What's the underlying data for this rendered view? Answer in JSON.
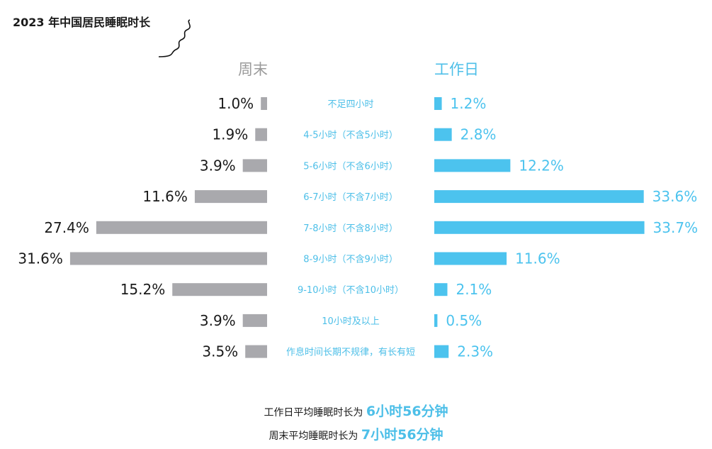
{
  "title": "2023 年中国居民睡眠时长",
  "headers": {
    "weekend": "周末",
    "workday": "工作日"
  },
  "colors": {
    "weekend": "#a9a9ad",
    "workday": "#4cc3ee",
    "label": "#4dbfe8",
    "text": "#1a1a1a"
  },
  "chart_data": {
    "type": "bar",
    "title": "2023 年中国居民睡眠时长",
    "categories": [
      "不足四小时",
      "4-5小时（不含5小时）",
      "5-6小时（不含6小时）",
      "6-7小时（不含7小时）",
      "7-8小时（不含8小时）",
      "8-9小时（不含9小时）",
      "9-10小时（不含10小时）",
      "10小时及以上",
      "作息时间长期不规律，有长有短"
    ],
    "series": [
      {
        "name": "周末",
        "values": [
          1.0,
          1.9,
          3.9,
          11.6,
          27.4,
          31.6,
          15.2,
          3.9,
          3.5
        ],
        "labels": [
          "1.0%",
          "1.9%",
          "3.9%",
          "11.6%",
          "27.4%",
          "31.6%",
          "15.2%",
          "3.9%",
          "3.5%"
        ]
      },
      {
        "name": "工作日",
        "values": [
          1.2,
          2.8,
          12.2,
          33.6,
          33.7,
          11.6,
          2.1,
          0.5,
          2.3
        ],
        "labels": [
          "1.2%",
          "2.8%",
          "12.2%",
          "33.6%",
          "33.7%",
          "11.6%",
          "2.1%",
          "0.5%",
          "2.3%"
        ]
      }
    ]
  },
  "footer": {
    "line1_prefix": "工作日平均睡眠时长为",
    "line1_value": "6小时56分钟",
    "line2_prefix": "周末平均睡眠时长为",
    "line2_value": "7小时56分钟"
  }
}
